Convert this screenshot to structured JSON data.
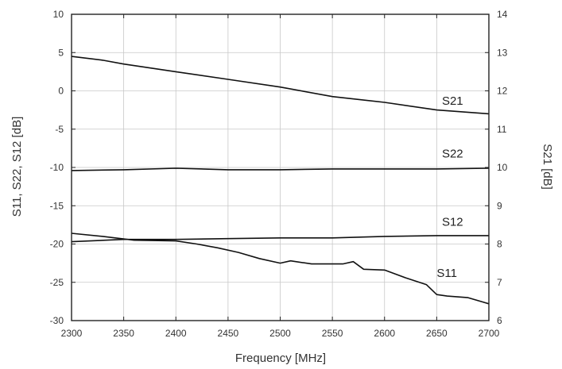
{
  "chart_data": {
    "type": "line",
    "xlabel": "Frequency [MHz]",
    "ylabel_left": "S11, S22, S12 [dB]",
    "ylabel_right": "S21 [dB]",
    "xlim": [
      2300,
      2700
    ],
    "ylim_left": [
      -30,
      10
    ],
    "ylim_right": [
      6,
      14
    ],
    "x_ticks": [
      "2300",
      "2350",
      "2400",
      "2450",
      "2500",
      "2550",
      "2600",
      "2650",
      "2700"
    ],
    "y_left_ticks": [
      "10",
      "5",
      "0",
      "-5",
      "-10",
      "-15",
      "-20",
      "-25",
      "-30"
    ],
    "y_right_ticks": [
      "14",
      "13",
      "12",
      "11",
      "10",
      "9",
      "8",
      "7",
      "6"
    ],
    "grid": true,
    "series": [
      {
        "name": "S21",
        "axis": "right",
        "x": [
          2300,
          2330,
          2350,
          2400,
          2450,
          2500,
          2550,
          2600,
          2650,
          2700
        ],
        "y": [
          12.9,
          12.8,
          12.7,
          12.5,
          12.3,
          12.1,
          11.85,
          11.7,
          11.5,
          11.4
        ]
      },
      {
        "name": "S22",
        "axis": "left",
        "x": [
          2300,
          2350,
          2400,
          2450,
          2500,
          2550,
          2600,
          2650,
          2700
        ],
        "y": [
          -10.4,
          -10.3,
          -10.1,
          -10.3,
          -10.3,
          -10.2,
          -10.2,
          -10.2,
          -10.1
        ]
      },
      {
        "name": "S12",
        "axis": "left",
        "x": [
          2300,
          2350,
          2400,
          2450,
          2500,
          2550,
          2600,
          2650,
          2700
        ],
        "y": [
          -19.7,
          -19.4,
          -19.4,
          -19.3,
          -19.2,
          -19.2,
          -19.0,
          -18.9,
          -18.9
        ]
      },
      {
        "name": "S11",
        "axis": "left",
        "x": [
          2300,
          2330,
          2360,
          2400,
          2420,
          2440,
          2460,
          2480,
          2500,
          2510,
          2530,
          2560,
          2570,
          2580,
          2600,
          2620,
          2640,
          2650,
          2660,
          2680,
          2700
        ],
        "y": [
          -18.6,
          -19.0,
          -19.5,
          -19.6,
          -20.0,
          -20.5,
          -21.1,
          -21.9,
          -22.5,
          -22.2,
          -22.6,
          -22.6,
          -22.3,
          -23.3,
          -23.4,
          -24.4,
          -25.3,
          -26.6,
          -26.8,
          -27.0,
          -27.8
        ]
      }
    ],
    "labels": [
      {
        "text": "S21",
        "x": 2655,
        "y": -1.8
      },
      {
        "text": "S22",
        "x": 2655,
        "y": -8.7
      },
      {
        "text": "S12",
        "x": 2655,
        "y": -17.6
      },
      {
        "text": "S11",
        "x": 2650,
        "y": -24.3
      }
    ]
  }
}
